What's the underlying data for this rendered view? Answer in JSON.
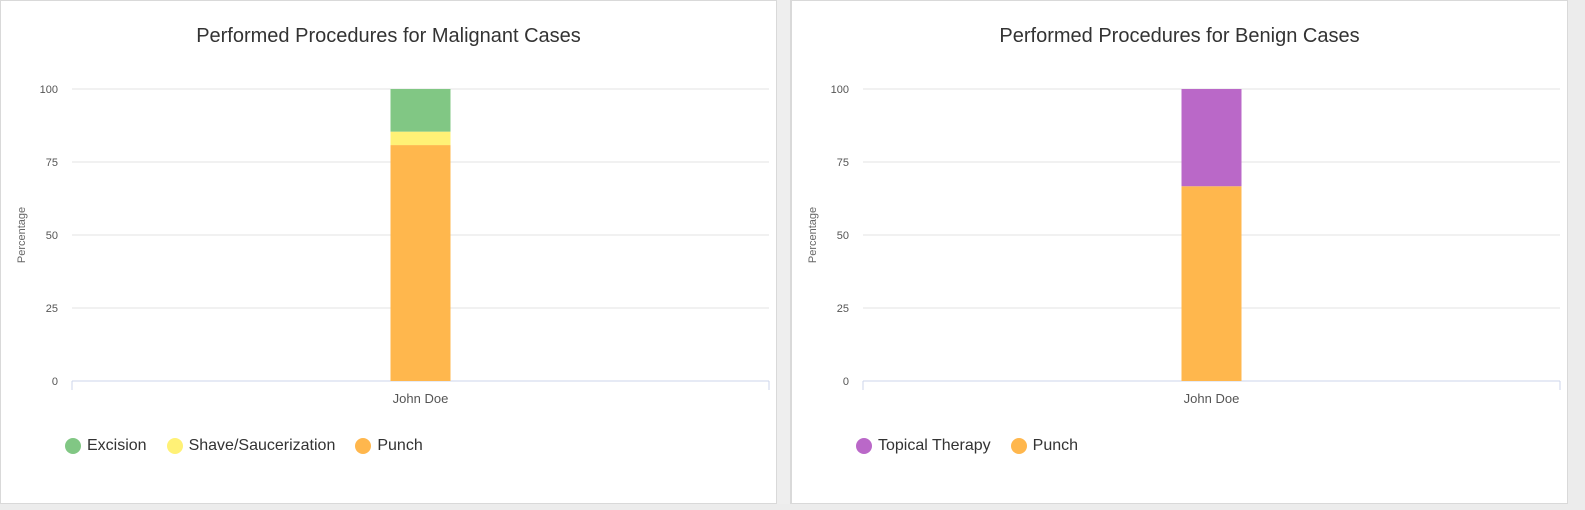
{
  "chart_data": [
    {
      "type": "bar",
      "stacked": true,
      "title": "Performed Procedures for Malignant Cases",
      "xlabel": "",
      "ylabel": "Percentage",
      "ylim": [
        0,
        100
      ],
      "yticks": [
        0,
        25,
        50,
        75,
        100
      ],
      "categories": [
        "John Doe"
      ],
      "grid": true,
      "legend_position": "bottom-left",
      "series": [
        {
          "name": "Punch",
          "values": [
            80.8
          ],
          "color": "#ffb74d"
        },
        {
          "name": "Shave/Saucerization",
          "values": [
            4.6
          ],
          "color": "#fff176"
        },
        {
          "name": "Excision",
          "values": [
            14.6
          ],
          "color": "#81c784"
        }
      ],
      "legend": [
        {
          "name": "Excision",
          "color": "#81c784"
        },
        {
          "name": "Shave/Saucerization",
          "color": "#fff176"
        },
        {
          "name": "Punch",
          "color": "#ffb74d"
        }
      ]
    },
    {
      "type": "bar",
      "stacked": true,
      "title": "Performed Procedures for Benign Cases",
      "xlabel": "",
      "ylabel": "Percentage",
      "ylim": [
        0,
        100
      ],
      "yticks": [
        0,
        25,
        50,
        75,
        100
      ],
      "categories": [
        "John Doe"
      ],
      "grid": true,
      "legend_position": "bottom-left",
      "series": [
        {
          "name": "Punch",
          "values": [
            66.7
          ],
          "color": "#ffb74d"
        },
        {
          "name": "Topical Therapy",
          "values": [
            33.3
          ],
          "color": "#ba68c8"
        }
      ],
      "legend": [
        {
          "name": "Topical Therapy",
          "color": "#ba68c8"
        },
        {
          "name": "Punch",
          "color": "#ffb74d"
        }
      ]
    }
  ]
}
